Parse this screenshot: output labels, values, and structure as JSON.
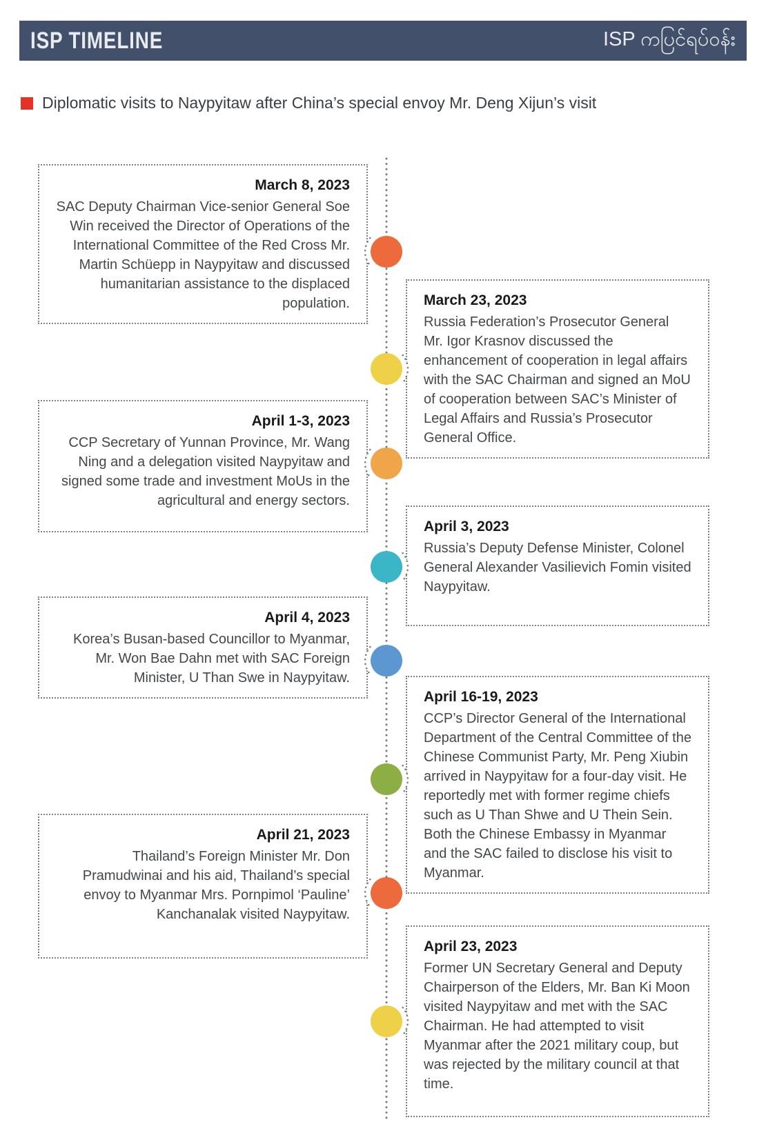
{
  "header": {
    "title": "ISP TIMELINE",
    "subtitle_burmese": "ISP ကပြင်ရပ်ဝန်း",
    "bg_color": "#42506b",
    "text_color": "#e9eaec"
  },
  "section": {
    "bullet_color": "#e43229",
    "title": "Diplomatic visits to Naypyitaw after China’s special envoy Mr. Deng Xijun’s visit"
  },
  "timeline": {
    "axis_color": "#7d7d7d",
    "events": [
      {
        "date": "March 8, 2023",
        "side": "left",
        "dot_color": "#ec6a3c",
        "text": "SAC Deputy Chairman Vice-senior General Soe Win received the Director of Operations of the International Committee of the Red Cross Mr. Martin Schüepp in Naypyitaw and discussed humanitarian assistance to the displaced population."
      },
      {
        "date": "March 23, 2023",
        "side": "right",
        "dot_color": "#eed148",
        "text": "Russia Federation’s Prosecutor General Mr. Igor Krasnov discussed the enhancement of cooperation in legal affairs with the SAC Chairman and signed an MoU of cooperation between SAC’s Minister of Legal Affairs and Russia’s Prosecutor General Office."
      },
      {
        "date": "April 1-3, 2023",
        "side": "left",
        "dot_color": "#f1a54a",
        "text": "CCP Secretary of Yunnan Province, Mr. Wang Ning and a delegation visited Naypyitaw and signed some trade and investment MoUs in the agricultural and energy sectors."
      },
      {
        "date": "April 3, 2023",
        "side": "right",
        "dot_color": "#3ab6c6",
        "text": "Russia’s Deputy Defense Minister, Colonel General Alexander Vasilievich Fomin visited Naypyitaw."
      },
      {
        "date": "April 4, 2023",
        "side": "left",
        "dot_color": "#5d97d1",
        "text": "Korea’s Busan-based Councillor to Myanmar, Mr. Won Bae Dahn met with SAC Foreign Minister, U Than Swe in Naypyitaw."
      },
      {
        "date": "April 16-19, 2023",
        "side": "right",
        "dot_color": "#8cae45",
        "text": "CCP’s Director General of the International Department of the Central Committee of the Chinese Communist Party, Mr. Peng Xiubin arrived in Naypyitaw for a four-day visit. He reportedly met with former regime chiefs such as U Than Shwe and U Thein Sein. Both the Chinese Embassy in Myanmar and the SAC failed to disclose his visit to Myanmar."
      },
      {
        "date": "April 21, 2023",
        "side": "left",
        "dot_color": "#ec6a3c",
        "text": "Thailand’s Foreign Minister Mr. Don Pramudwinai and his aid, Thailand’s special envoy to Myanmar Mrs. Pornpimol ‘Pauline’ Kanchanalak visited Naypyitaw."
      },
      {
        "date": "April 23, 2023",
        "side": "right",
        "dot_color": "#eed148",
        "text": "Former UN Secretary General and Deputy Chairperson of the Elders, Mr. Ban Ki Moon visited Naypyitaw and met with the SAC Chairman. He had attempted to visit Myanmar after the 2021 military coup, but was rejected by the military council at that time."
      }
    ]
  }
}
